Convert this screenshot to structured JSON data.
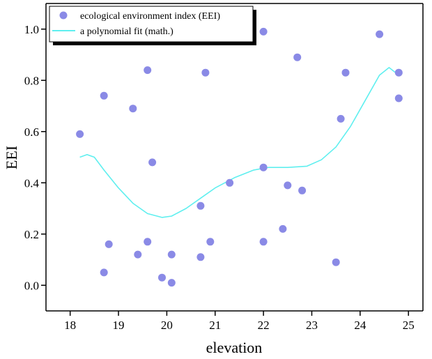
{
  "chart_data": {
    "type": "scatter",
    "xlabel": "elevation",
    "ylabel": "EEI",
    "xlim": [
      17.5,
      25.3
    ],
    "ylim": [
      -0.1,
      1.1
    ],
    "x_ticks": [
      "18",
      "19",
      "20",
      "21",
      "22",
      "23",
      "24",
      "25"
    ],
    "y_ticks": [
      "0.0",
      "0.2",
      "0.4",
      "0.6",
      "0.8",
      "1.0"
    ],
    "grid": false,
    "legend_position": "top-left",
    "colors": {
      "points": "#8a8ae6",
      "fit": "#5fefef",
      "axis": "#000000"
    },
    "series": [
      {
        "name": "ecological environment index (EEI)",
        "kind": "scatter",
        "points": [
          [
            18.2,
            0.59
          ],
          [
            18.7,
            0.74
          ],
          [
            18.7,
            0.05
          ],
          [
            18.8,
            0.16
          ],
          [
            19.3,
            0.69
          ],
          [
            19.4,
            0.12
          ],
          [
            19.6,
            0.84
          ],
          [
            19.6,
            0.17
          ],
          [
            19.7,
            0.48
          ],
          [
            19.9,
            0.03
          ],
          [
            20.1,
            0.12
          ],
          [
            20.1,
            0.01
          ],
          [
            20.7,
            0.31
          ],
          [
            20.7,
            0.11
          ],
          [
            20.8,
            0.83
          ],
          [
            20.9,
            0.17
          ],
          [
            21.3,
            0.4
          ],
          [
            22.0,
            0.99
          ],
          [
            22.0,
            0.46
          ],
          [
            22.0,
            0.17
          ],
          [
            22.4,
            0.22
          ],
          [
            22.5,
            0.39
          ],
          [
            22.7,
            0.89
          ],
          [
            22.8,
            0.37
          ],
          [
            23.5,
            0.09
          ],
          [
            23.6,
            0.65
          ],
          [
            23.7,
            0.83
          ],
          [
            24.4,
            0.98
          ],
          [
            24.8,
            0.83
          ],
          [
            24.8,
            0.73
          ]
        ]
      },
      {
        "name": "a polynomial fit (math.)",
        "kind": "line",
        "points": [
          [
            18.2,
            0.5
          ],
          [
            18.35,
            0.51
          ],
          [
            18.5,
            0.5
          ],
          [
            18.7,
            0.45
          ],
          [
            19.0,
            0.38
          ],
          [
            19.3,
            0.32
          ],
          [
            19.6,
            0.28
          ],
          [
            19.9,
            0.265
          ],
          [
            20.1,
            0.27
          ],
          [
            20.4,
            0.3
          ],
          [
            20.7,
            0.34
          ],
          [
            21.0,
            0.38
          ],
          [
            21.4,
            0.42
          ],
          [
            21.8,
            0.45
          ],
          [
            22.1,
            0.46
          ],
          [
            22.5,
            0.46
          ],
          [
            22.9,
            0.465
          ],
          [
            23.2,
            0.49
          ],
          [
            23.5,
            0.54
          ],
          [
            23.8,
            0.62
          ],
          [
            24.1,
            0.72
          ],
          [
            24.4,
            0.82
          ],
          [
            24.6,
            0.85
          ],
          [
            24.8,
            0.82
          ]
        ]
      }
    ]
  }
}
